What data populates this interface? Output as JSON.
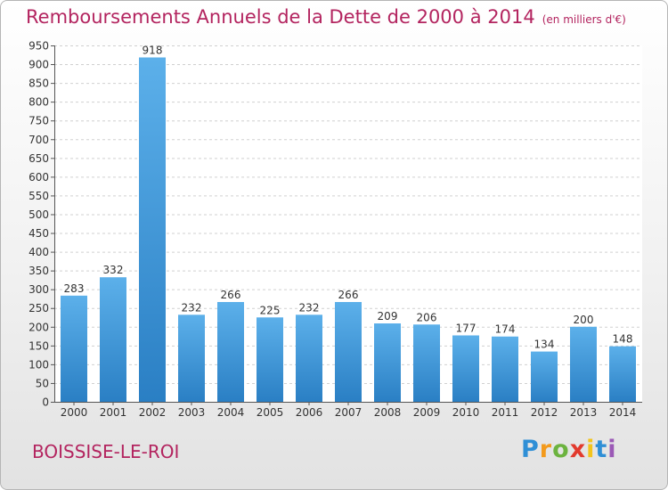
{
  "chart_data": {
    "type": "bar",
    "title": "Remboursements Annuels de la Dette de 2000 à 2014",
    "subtitle": "(en milliers d'€)",
    "categories": [
      "2000",
      "2001",
      "2002",
      "2003",
      "2004",
      "2005",
      "2006",
      "2007",
      "2008",
      "2009",
      "2010",
      "2011",
      "2012",
      "2013",
      "2014"
    ],
    "values": [
      283,
      332,
      918,
      232,
      266,
      225,
      232,
      266,
      209,
      206,
      177,
      174,
      134,
      200,
      148
    ],
    "ylim": [
      0,
      950
    ],
    "yticks": [
      0,
      50,
      100,
      150,
      200,
      250,
      300,
      350,
      400,
      450,
      500,
      550,
      600,
      650,
      700,
      750,
      800,
      850,
      900,
      950
    ],
    "grid": true,
    "bar_color": "#4a9fe0",
    "axis_text_color": "#333333"
  },
  "location": "BOISSISE-LE-ROI",
  "logo": {
    "p": "P",
    "r": "r",
    "o": "o",
    "x": "x",
    "i1": "i",
    "t": "t",
    "i2": "i"
  },
  "colors": {
    "title": "#b3245f",
    "bar_top": "#5cb0ea",
    "bar_bottom": "#2a7fc4"
  }
}
